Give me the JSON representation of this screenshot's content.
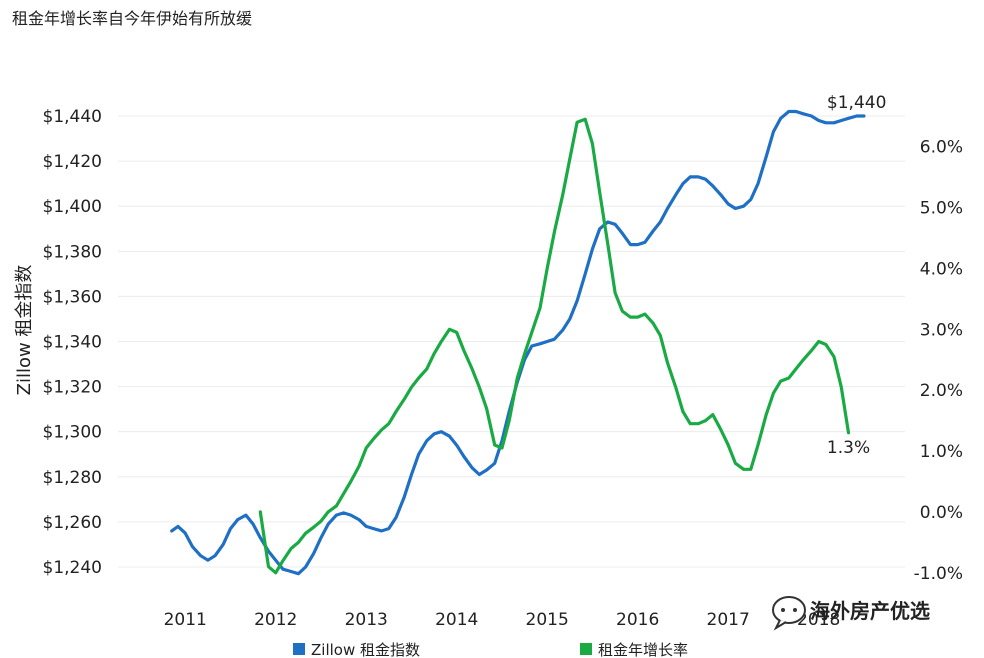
{
  "chart_data": {
    "type": "line",
    "title": "租金年增长率自今年伊始有所放缓",
    "ylabel": "Zillow 租金指数",
    "x_tick_labels": [
      "2011",
      "2012",
      "2013",
      "2014",
      "2015",
      "2016",
      "2017",
      "2018"
    ],
    "y_left": {
      "ylim": [
        1232,
        1448
      ],
      "ticks": [
        1240,
        1260,
        1280,
        1300,
        1320,
        1340,
        1360,
        1380,
        1400,
        1420,
        1440
      ],
      "tick_labels": [
        "$1,240",
        "$1,260",
        "$1,280",
        "$1,300",
        "$1,320",
        "$1,340",
        "$1,360",
        "$1,380",
        "$1,400",
        "$1,420",
        "$1,440"
      ]
    },
    "y_right": {
      "ylim": [
        -1.2,
        6.8
      ],
      "ticks": [
        -1,
        0,
        1,
        2,
        3,
        4,
        5,
        6
      ],
      "tick_labels": [
        "-1.0%",
        "0.0%",
        "1.0%",
        "2.0%",
        "3.0%",
        "4.0%",
        "5.0%",
        "6.0%"
      ]
    },
    "series": [
      {
        "name": "Zillow 租金指数",
        "axis": "left",
        "color": "#1f6fc5",
        "points": [
          [
            2010.85,
            1256
          ],
          [
            2010.92,
            1258
          ],
          [
            2011.0,
            1255
          ],
          [
            2011.08,
            1249
          ],
          [
            2011.17,
            1245
          ],
          [
            2011.25,
            1243
          ],
          [
            2011.33,
            1245
          ],
          [
            2011.42,
            1250
          ],
          [
            2011.5,
            1257
          ],
          [
            2011.58,
            1261
          ],
          [
            2011.67,
            1263
          ],
          [
            2011.75,
            1259
          ],
          [
            2011.83,
            1253
          ],
          [
            2011.92,
            1247
          ],
          [
            2012.0,
            1243
          ],
          [
            2012.08,
            1239
          ],
          [
            2012.17,
            1238
          ],
          [
            2012.25,
            1237
          ],
          [
            2012.33,
            1240
          ],
          [
            2012.42,
            1246
          ],
          [
            2012.5,
            1253
          ],
          [
            2012.58,
            1259
          ],
          [
            2012.67,
            1263
          ],
          [
            2012.75,
            1264
          ],
          [
            2012.83,
            1263
          ],
          [
            2012.92,
            1261
          ],
          [
            2013.0,
            1258
          ],
          [
            2013.08,
            1257
          ],
          [
            2013.17,
            1256
          ],
          [
            2013.25,
            1257
          ],
          [
            2013.33,
            1262
          ],
          [
            2013.42,
            1271
          ],
          [
            2013.5,
            1281
          ],
          [
            2013.58,
            1290
          ],
          [
            2013.67,
            1296
          ],
          [
            2013.75,
            1299
          ],
          [
            2013.83,
            1300
          ],
          [
            2013.92,
            1298
          ],
          [
            2014.0,
            1294
          ],
          [
            2014.08,
            1289
          ],
          [
            2014.17,
            1284
          ],
          [
            2014.25,
            1281
          ],
          [
            2014.33,
            1283
          ],
          [
            2014.42,
            1286
          ],
          [
            2014.5,
            1296
          ],
          [
            2014.58,
            1309
          ],
          [
            2014.67,
            1322
          ],
          [
            2014.75,
            1332
          ],
          [
            2014.83,
            1338
          ],
          [
            2014.92,
            1339
          ],
          [
            2015.0,
            1340
          ],
          [
            2015.08,
            1341
          ],
          [
            2015.17,
            1345
          ],
          [
            2015.25,
            1350
          ],
          [
            2015.33,
            1358
          ],
          [
            2015.42,
            1370
          ],
          [
            2015.5,
            1381
          ],
          [
            2015.58,
            1390
          ],
          [
            2015.67,
            1393
          ],
          [
            2015.75,
            1392
          ],
          [
            2015.83,
            1388
          ],
          [
            2015.92,
            1383
          ],
          [
            2016.0,
            1383
          ],
          [
            2016.08,
            1384
          ],
          [
            2016.17,
            1389
          ],
          [
            2016.25,
            1393
          ],
          [
            2016.33,
            1399
          ],
          [
            2016.42,
            1405
          ],
          [
            2016.5,
            1410
          ],
          [
            2016.58,
            1413
          ],
          [
            2016.67,
            1413
          ],
          [
            2016.75,
            1412
          ],
          [
            2016.83,
            1409
          ],
          [
            2016.92,
            1405
          ],
          [
            2017.0,
            1401
          ],
          [
            2017.08,
            1399
          ],
          [
            2017.17,
            1400
          ],
          [
            2017.25,
            1403
          ],
          [
            2017.33,
            1410
          ],
          [
            2017.42,
            1422
          ],
          [
            2017.5,
            1433
          ],
          [
            2017.58,
            1439
          ],
          [
            2017.67,
            1442
          ],
          [
            2017.75,
            1442
          ],
          [
            2017.83,
            1441
          ],
          [
            2017.92,
            1440
          ],
          [
            2018.0,
            1438
          ],
          [
            2018.08,
            1437
          ],
          [
            2018.17,
            1437
          ],
          [
            2018.25,
            1438
          ],
          [
            2018.33,
            1439
          ],
          [
            2018.42,
            1440
          ],
          [
            2018.5,
            1440
          ]
        ]
      },
      {
        "name": "租金年增长率",
        "axis": "right",
        "color": "#1aaa44",
        "points": [
          [
            2011.83,
            0.0
          ],
          [
            2011.92,
            -0.9
          ],
          [
            2012.0,
            -1.0
          ],
          [
            2012.08,
            -0.8
          ],
          [
            2012.17,
            -0.6
          ],
          [
            2012.25,
            -0.5
          ],
          [
            2012.33,
            -0.35
          ],
          [
            2012.42,
            -0.25
          ],
          [
            2012.5,
            -0.15
          ],
          [
            2012.58,
            0.0
          ],
          [
            2012.67,
            0.1
          ],
          [
            2012.75,
            0.3
          ],
          [
            2012.83,
            0.5
          ],
          [
            2012.92,
            0.75
          ],
          [
            2013.0,
            1.05
          ],
          [
            2013.08,
            1.2
          ],
          [
            2013.17,
            1.35
          ],
          [
            2013.25,
            1.45
          ],
          [
            2013.33,
            1.65
          ],
          [
            2013.42,
            1.85
          ],
          [
            2013.5,
            2.05
          ],
          [
            2013.58,
            2.2
          ],
          [
            2013.67,
            2.35
          ],
          [
            2013.75,
            2.6
          ],
          [
            2013.83,
            2.8
          ],
          [
            2013.92,
            3.0
          ],
          [
            2014.0,
            2.95
          ],
          [
            2014.08,
            2.65
          ],
          [
            2014.17,
            2.35
          ],
          [
            2014.25,
            2.05
          ],
          [
            2014.33,
            1.7
          ],
          [
            2014.42,
            1.1
          ],
          [
            2014.5,
            1.05
          ],
          [
            2014.58,
            1.5
          ],
          [
            2014.67,
            2.2
          ],
          [
            2014.75,
            2.6
          ],
          [
            2014.83,
            2.95
          ],
          [
            2014.92,
            3.35
          ],
          [
            2015.0,
            4.0
          ],
          [
            2015.08,
            4.6
          ],
          [
            2015.17,
            5.2
          ],
          [
            2015.25,
            5.8
          ],
          [
            2015.33,
            6.4
          ],
          [
            2015.42,
            6.45
          ],
          [
            2015.5,
            6.05
          ],
          [
            2015.58,
            5.25
          ],
          [
            2015.67,
            4.4
          ],
          [
            2015.75,
            3.6
          ],
          [
            2015.83,
            3.3
          ],
          [
            2015.92,
            3.2
          ],
          [
            2016.0,
            3.2
          ],
          [
            2016.08,
            3.25
          ],
          [
            2016.17,
            3.1
          ],
          [
            2016.25,
            2.9
          ],
          [
            2016.33,
            2.45
          ],
          [
            2016.42,
            2.05
          ],
          [
            2016.5,
            1.65
          ],
          [
            2016.58,
            1.45
          ],
          [
            2016.67,
            1.45
          ],
          [
            2016.75,
            1.5
          ],
          [
            2016.83,
            1.6
          ],
          [
            2016.92,
            1.35
          ],
          [
            2017.0,
            1.1
          ],
          [
            2017.08,
            0.8
          ],
          [
            2017.17,
            0.7
          ],
          [
            2017.25,
            0.7
          ],
          [
            2017.33,
            1.1
          ],
          [
            2017.42,
            1.6
          ],
          [
            2017.5,
            1.95
          ],
          [
            2017.58,
            2.15
          ],
          [
            2017.67,
            2.2
          ],
          [
            2017.75,
            2.35
          ],
          [
            2017.83,
            2.5
          ],
          [
            2017.92,
            2.65
          ],
          [
            2018.0,
            2.8
          ],
          [
            2018.08,
            2.75
          ],
          [
            2018.17,
            2.55
          ],
          [
            2018.25,
            2.05
          ],
          [
            2018.33,
            1.3
          ]
        ]
      }
    ],
    "annotations": [
      {
        "text": "$1,440",
        "series": "Zillow 租金指数",
        "x": 2018.42,
        "y": 1440
      },
      {
        "text": "1.3%",
        "series": "租金年增长率",
        "x": 2018.33,
        "y": 1.3
      }
    ],
    "legend": {
      "placement": "bottom",
      "entries": [
        {
          "label": "Zillow 租金指数",
          "color": "#1f6fc5"
        },
        {
          "label": "租金年增长率",
          "color": "#1aaa44"
        }
      ]
    },
    "grid": true
  },
  "watermark": {
    "text": "海外房产优选",
    "icon": "chat-bubble-icon"
  }
}
